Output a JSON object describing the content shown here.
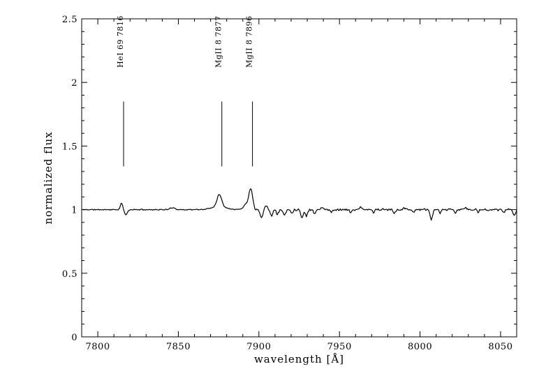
{
  "figure": {
    "background_color": "#ffffff",
    "frame_color": "#000000",
    "trace_color": "#000000"
  },
  "chart_data": {
    "type": "line",
    "title": "",
    "xlabel": "wavelength [Å]",
    "ylabel": "normalized flux",
    "xlim": [
      7790,
      8060
    ],
    "ylim": [
      0,
      2.5
    ],
    "grid": false,
    "legend": null,
    "x_major_ticks": [
      7800,
      7850,
      7900,
      7950,
      8000,
      8050
    ],
    "x_tick_labels": [
      "7800",
      "7850",
      "7900",
      "7950",
      "8000",
      "8050"
    ],
    "x_minor_step": 10,
    "y_major_ticks": [
      0,
      0.5,
      1,
      1.5,
      2,
      2.5
    ],
    "y_tick_labels": [
      "0",
      "0.5",
      "1",
      "1.5",
      "2",
      "2.5"
    ],
    "y_minor_step": 0.1,
    "line_markers": [
      {
        "label": "HeI 69 7816",
        "wavelength": 7816,
        "flux_from": 1.34,
        "flux_to": 1.85
      },
      {
        "label": "MgII 8 7877",
        "wavelength": 7877,
        "flux_from": 1.34,
        "flux_to": 1.85
      },
      {
        "label": "MgII 8 7896",
        "wavelength": 7896,
        "flux_from": 1.34,
        "flux_to": 1.85
      }
    ],
    "spectrum": {
      "baseline": 1.0,
      "sample_step": 0.5,
      "noise": {
        "amplitude_left": 0.005,
        "amplitude_right": 0.01,
        "transition_wavelength": 7896,
        "seed": 11
      },
      "features": [
        [
          7814.8,
          0.05,
          0.8
        ],
        [
          7817.4,
          -0.04,
          1.0
        ],
        [
          7846.5,
          0.016,
          1.4
        ],
        [
          7875.4,
          0.095,
          1.4
        ],
        [
          7875.4,
          0.025,
          4.5
        ],
        [
          7891.5,
          0.022,
          1.0
        ],
        [
          7894.9,
          0.13,
          1.2
        ],
        [
          7894.9,
          0.035,
          3.0
        ],
        [
          7897.8,
          -0.03,
          0.8
        ],
        [
          7901.5,
          -0.06,
          0.9
        ],
        [
          7904.5,
          0.028,
          0.9
        ],
        [
          7907.8,
          -0.045,
          0.8
        ],
        [
          7911.5,
          -0.038,
          0.7
        ],
        [
          7915.8,
          -0.042,
          0.8
        ],
        [
          7920.5,
          -0.028,
          0.6
        ],
        [
          7926.8,
          -0.06,
          0.8
        ],
        [
          7929.5,
          -0.05,
          0.7
        ],
        [
          7934.5,
          -0.032,
          0.6
        ],
        [
          7939.0,
          0.018,
          0.8
        ],
        [
          7945.0,
          -0.022,
          0.6
        ],
        [
          7957.0,
          -0.028,
          0.6
        ],
        [
          7963.0,
          0.016,
          0.8
        ],
        [
          7971.0,
          -0.024,
          0.5
        ],
        [
          7984.0,
          -0.028,
          0.6
        ],
        [
          7990.0,
          0.015,
          0.7
        ],
        [
          7996.0,
          -0.022,
          0.5
        ],
        [
          8007.0,
          -0.075,
          0.8
        ],
        [
          8012.5,
          -0.032,
          0.6
        ],
        [
          8022.0,
          -0.028,
          0.6
        ],
        [
          8028.0,
          0.016,
          0.8
        ],
        [
          8036.0,
          -0.024,
          0.5
        ],
        [
          8052.0,
          -0.028,
          0.6
        ],
        [
          8058.5,
          -0.045,
          0.7
        ]
      ]
    }
  }
}
